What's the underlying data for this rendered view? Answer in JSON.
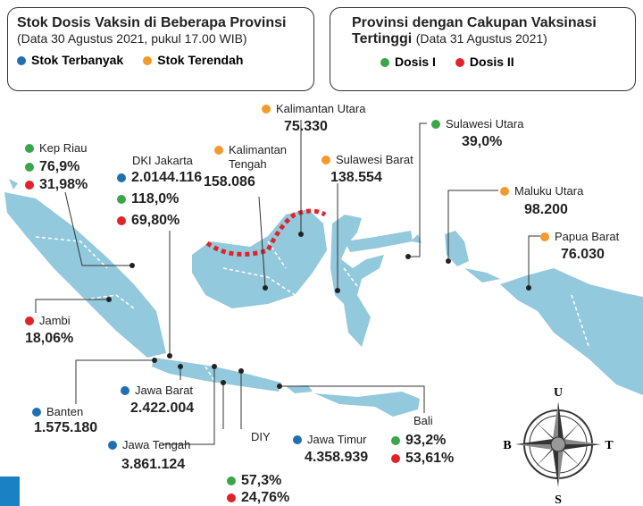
{
  "legend_left": {
    "title": "Stok Dosis Vaksin di Beberapa Provinsi",
    "subtitle": "(Data 30 Agustus 2021, pukul 17.00 WIB)",
    "items": [
      {
        "label": "Stok Terbanyak",
        "color": "#1f6fb2"
      },
      {
        "label": "Stok Terendah",
        "color": "#f39a2b"
      }
    ]
  },
  "legend_right": {
    "title": "Provinsi dengan Cakupan Vaksinasi",
    "title_rest": "Tertinggi",
    "subtitle": "(Data 31 Agustus 2021)",
    "items": [
      {
        "label": "Dosis I",
        "color": "#3aa648"
      },
      {
        "label": "Dosis II",
        "color": "#e02229"
      }
    ]
  },
  "provinces": [
    {
      "name": "Kep Riau",
      "dot": "#3aa648",
      "stats": [
        {
          "value": "76,9%",
          "color": "#3aa648"
        },
        {
          "value": "31,98%",
          "color": "#e02229"
        }
      ]
    },
    {
      "name": "DKI Jakarta",
      "stats": [
        {
          "value": "2.0144.116",
          "color": "#1f6fb2"
        },
        {
          "value": "118,0%",
          "color": "#3aa648"
        },
        {
          "value": "69,80%",
          "color": "#e02229"
        }
      ]
    },
    {
      "name": "Kalimantan Tengah",
      "dot": "#f39a2b",
      "stats": [
        {
          "value": "158.086"
        }
      ]
    },
    {
      "name": "Kalimantan Utara",
      "dot": "#f39a2b",
      "stats": [
        {
          "value": "75.330"
        }
      ]
    },
    {
      "name": "Sulawesi Barat",
      "dot": "#f39a2b",
      "stats": [
        {
          "value": "138.554"
        }
      ]
    },
    {
      "name": "Sulawesi Utara",
      "dot": "#3aa648",
      "stats": [
        {
          "value": "39,0%"
        }
      ]
    },
    {
      "name": "Maluku Utara",
      "dot": "#f39a2b",
      "stats": [
        {
          "value": "98.200"
        }
      ]
    },
    {
      "name": "Papua Barat",
      "dot": "#f39a2b",
      "stats": [
        {
          "value": "76.030"
        }
      ]
    },
    {
      "name": "Jambi",
      "dot": "#e02229",
      "stats": [
        {
          "value": "18,06%"
        }
      ]
    },
    {
      "name": "Banten",
      "dot": "#1f6fb2",
      "stats": [
        {
          "value": "1.575.180"
        }
      ]
    },
    {
      "name": "Jawa Barat",
      "dot": "#1f6fb2",
      "stats": [
        {
          "value": "2.422.004"
        }
      ]
    },
    {
      "name": "Jawa Tengah",
      "dot": "#1f6fb2",
      "stats": [
        {
          "value": "3.861.124"
        }
      ]
    },
    {
      "name": "DIY",
      "stats": [
        {
          "value": "57,3%",
          "color": "#3aa648"
        },
        {
          "value": "24,76%",
          "color": "#e02229"
        }
      ]
    },
    {
      "name": "Jawa Timur",
      "dot": "#1f6fb2",
      "stats": [
        {
          "value": "4.358.939"
        }
      ]
    },
    {
      "name": "Bali",
      "stats": [
        {
          "value": "93,2%",
          "color": "#3aa648"
        },
        {
          "value": "53,61%",
          "color": "#e02229"
        }
      ]
    }
  ],
  "compass": {
    "north": "U",
    "south": "S",
    "west": "B",
    "east": "T"
  }
}
